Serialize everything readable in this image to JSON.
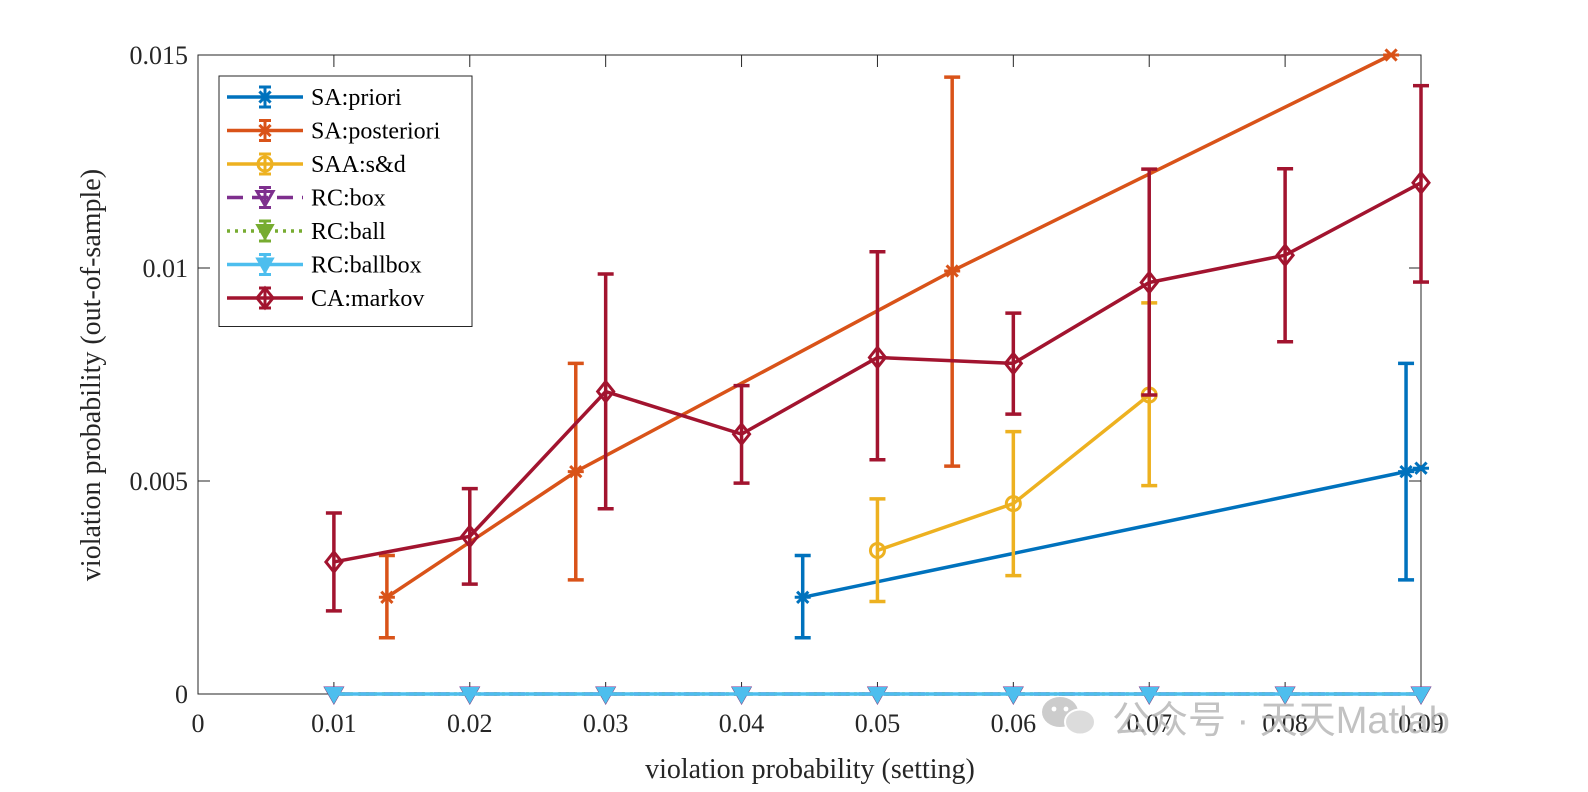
{
  "watermark": {
    "text": "公众号 · 天天Matlab",
    "icon": "wechat-icon"
  },
  "chart_data": {
    "type": "line",
    "title": "",
    "xlabel": "violation probability (setting)",
    "ylabel": "violation probability (out-of-sample)",
    "xlim": [
      0,
      0.09
    ],
    "ylim": [
      0,
      0.015
    ],
    "xticks": [
      0,
      0.01,
      0.02,
      0.03,
      0.04,
      0.05,
      0.06,
      0.07,
      0.08,
      0.09
    ],
    "xtick_labels": [
      "0",
      "0.01",
      "0.02",
      "0.03",
      "0.04",
      "0.05",
      "0.06",
      "0.07",
      "0.08",
      "0.09"
    ],
    "yticks": [
      0,
      0.005,
      0.01,
      0.015
    ],
    "ytick_labels": [
      "0",
      "0.005",
      "0.01",
      "0.015"
    ],
    "grid": false,
    "legend_position": "top-left",
    "series": [
      {
        "name": "SA:priori",
        "color": "#0072BD",
        "marker": "star",
        "dash": "solid",
        "x": [
          0.0445,
          0.0889,
          0.09
        ],
        "y": [
          0.00227,
          0.00522,
          0.0053
        ],
        "yerr_low": [
          0.00132,
          0.00268,
          null
        ],
        "yerr_high": [
          0.00325,
          0.00776,
          null
        ]
      },
      {
        "name": "SA:posteriori",
        "color": "#D95319",
        "marker": "star",
        "dash": "solid",
        "x": [
          0.0139,
          0.0278,
          0.0555,
          0.0878
        ],
        "y": [
          0.00227,
          0.00522,
          0.00993,
          0.015
        ],
        "yerr_low": [
          0.00132,
          0.00268,
          0.00535,
          null
        ],
        "yerr_high": [
          0.00325,
          0.00776,
          0.01448,
          null
        ]
      },
      {
        "name": "SAA:s&d",
        "color": "#EDB120",
        "marker": "circle",
        "dash": "solid",
        "x": [
          0.05,
          0.06,
          0.07
        ],
        "y": [
          0.00337,
          0.00447,
          0.00702
        ],
        "yerr_low": [
          0.00217,
          0.00278,
          0.00489
        ],
        "yerr_high": [
          0.00458,
          0.00616,
          0.00918
        ]
      },
      {
        "name": "RC:box",
        "color": "#7E2F8E",
        "marker": "triangle-down-open",
        "dash": "dashed",
        "x": [
          0.01,
          0.02,
          0.03,
          0.04,
          0.05,
          0.06,
          0.07,
          0.08,
          0.09
        ],
        "y": [
          0,
          0,
          0,
          0,
          0,
          0,
          0,
          0,
          0
        ]
      },
      {
        "name": "RC:ball",
        "color": "#77AC30",
        "marker": "triangle-down",
        "dash": "dotted",
        "x": [
          0.01,
          0.02,
          0.03,
          0.04,
          0.05,
          0.06,
          0.07,
          0.08,
          0.09
        ],
        "y": [
          0,
          0,
          0,
          0,
          0,
          0,
          0,
          0,
          0
        ]
      },
      {
        "name": "RC:ballbox",
        "color": "#4DBEEE",
        "marker": "triangle-down",
        "dash": "solid",
        "x": [
          0.01,
          0.02,
          0.03,
          0.04,
          0.05,
          0.06,
          0.07,
          0.08,
          0.09
        ],
        "y": [
          0,
          0,
          0,
          0,
          0,
          0,
          0,
          0,
          0
        ]
      },
      {
        "name": "CA:markov",
        "color": "#A2142F",
        "marker": "diamond-open",
        "dash": "solid",
        "x": [
          0.01,
          0.02,
          0.03,
          0.04,
          0.05,
          0.06,
          0.07,
          0.08,
          0.09
        ],
        "y": [
          0.0031,
          0.0037,
          0.0071,
          0.0061,
          0.0079,
          0.00776,
          0.00966,
          0.0103,
          0.012
        ],
        "yerr_low": [
          0.00195,
          0.00258,
          0.00435,
          0.00495,
          0.0055,
          0.00657,
          0.00702,
          0.00827,
          0.00967
        ],
        "yerr_high": [
          0.00425,
          0.00482,
          0.00986,
          0.00724,
          0.01038,
          0.00894,
          0.01232,
          0.01233,
          0.01428
        ]
      }
    ]
  }
}
